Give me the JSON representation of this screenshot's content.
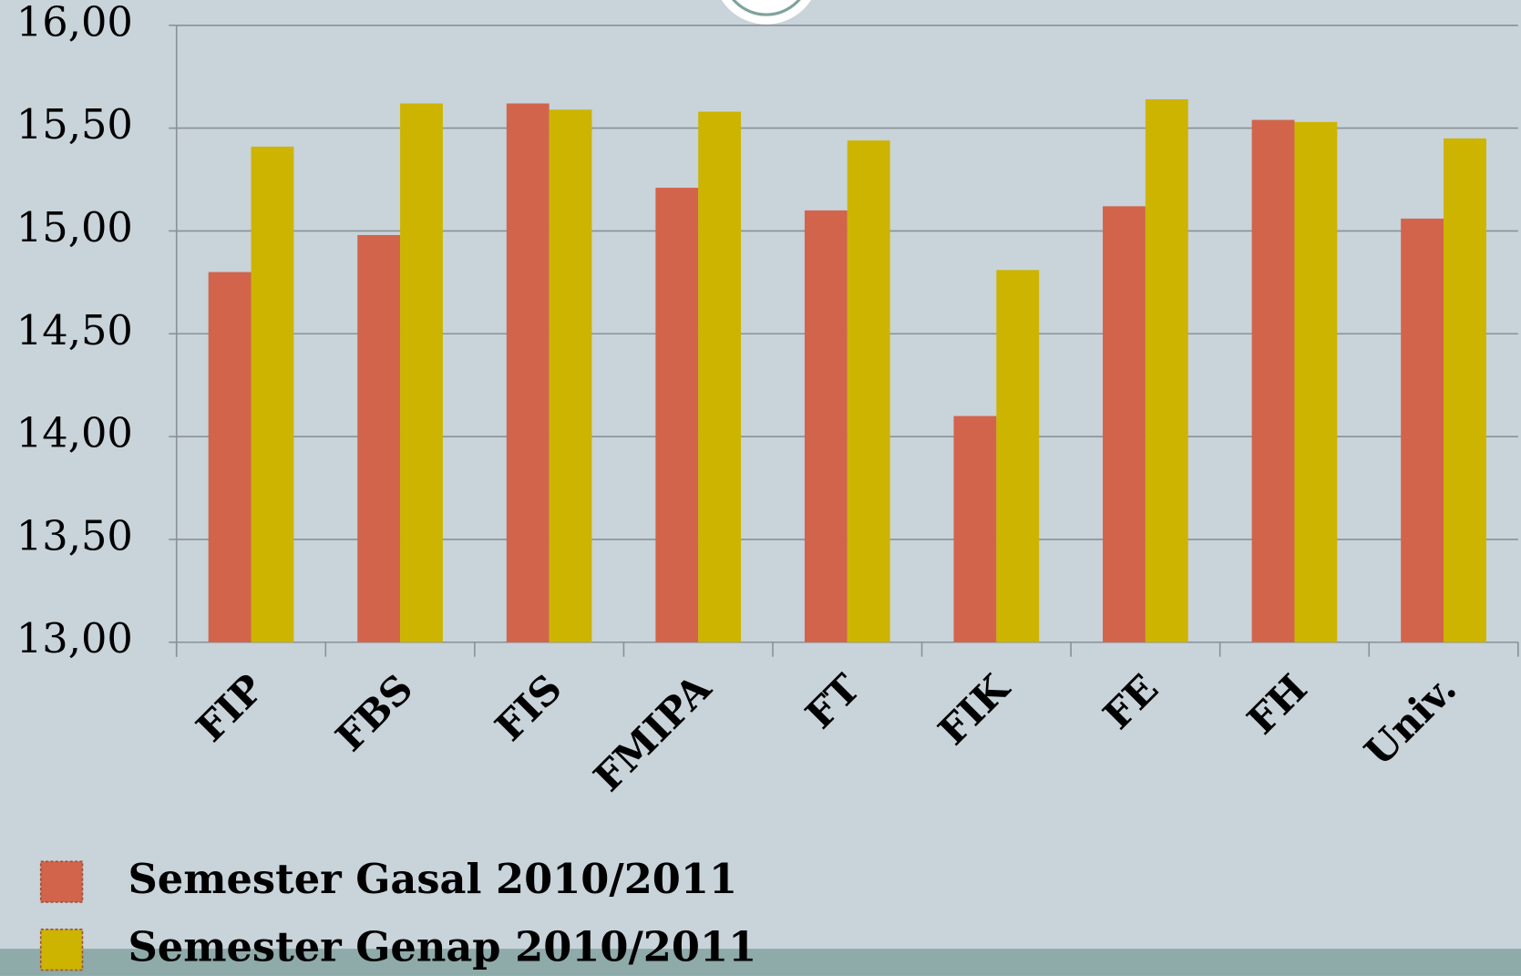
{
  "chart_data": {
    "type": "bar",
    "categories": [
      "FIP",
      "FBS",
      "FIS",
      "FMIPA",
      "FT",
      "FIK",
      "FE",
      "FH",
      "Univ."
    ],
    "series": [
      {
        "name": "Semester Gasal 2010/2011",
        "color": "#d2644b",
        "values": [
          14.8,
          14.98,
          15.62,
          15.21,
          15.1,
          14.1,
          15.12,
          15.54,
          15.06
        ]
      },
      {
        "name": "Semester Genap 2010/2011",
        "color": "#cdb400",
        "values": [
          15.41,
          15.62,
          15.59,
          15.58,
          15.44,
          14.81,
          15.64,
          15.53,
          15.45
        ]
      }
    ],
    "ylim": [
      13,
      16
    ],
    "yticks": [
      {
        "value": 13,
        "label": "13,00"
      },
      {
        "value": 13.5,
        "label": "13,50"
      },
      {
        "value": 14,
        "label": "14,00"
      },
      {
        "value": 14.5,
        "label": "14,50"
      },
      {
        "value": 15,
        "label": "15,00"
      },
      {
        "value": 15.5,
        "label": "15,50"
      },
      {
        "value": 16,
        "label": "16,00"
      }
    ],
    "grid": true
  }
}
